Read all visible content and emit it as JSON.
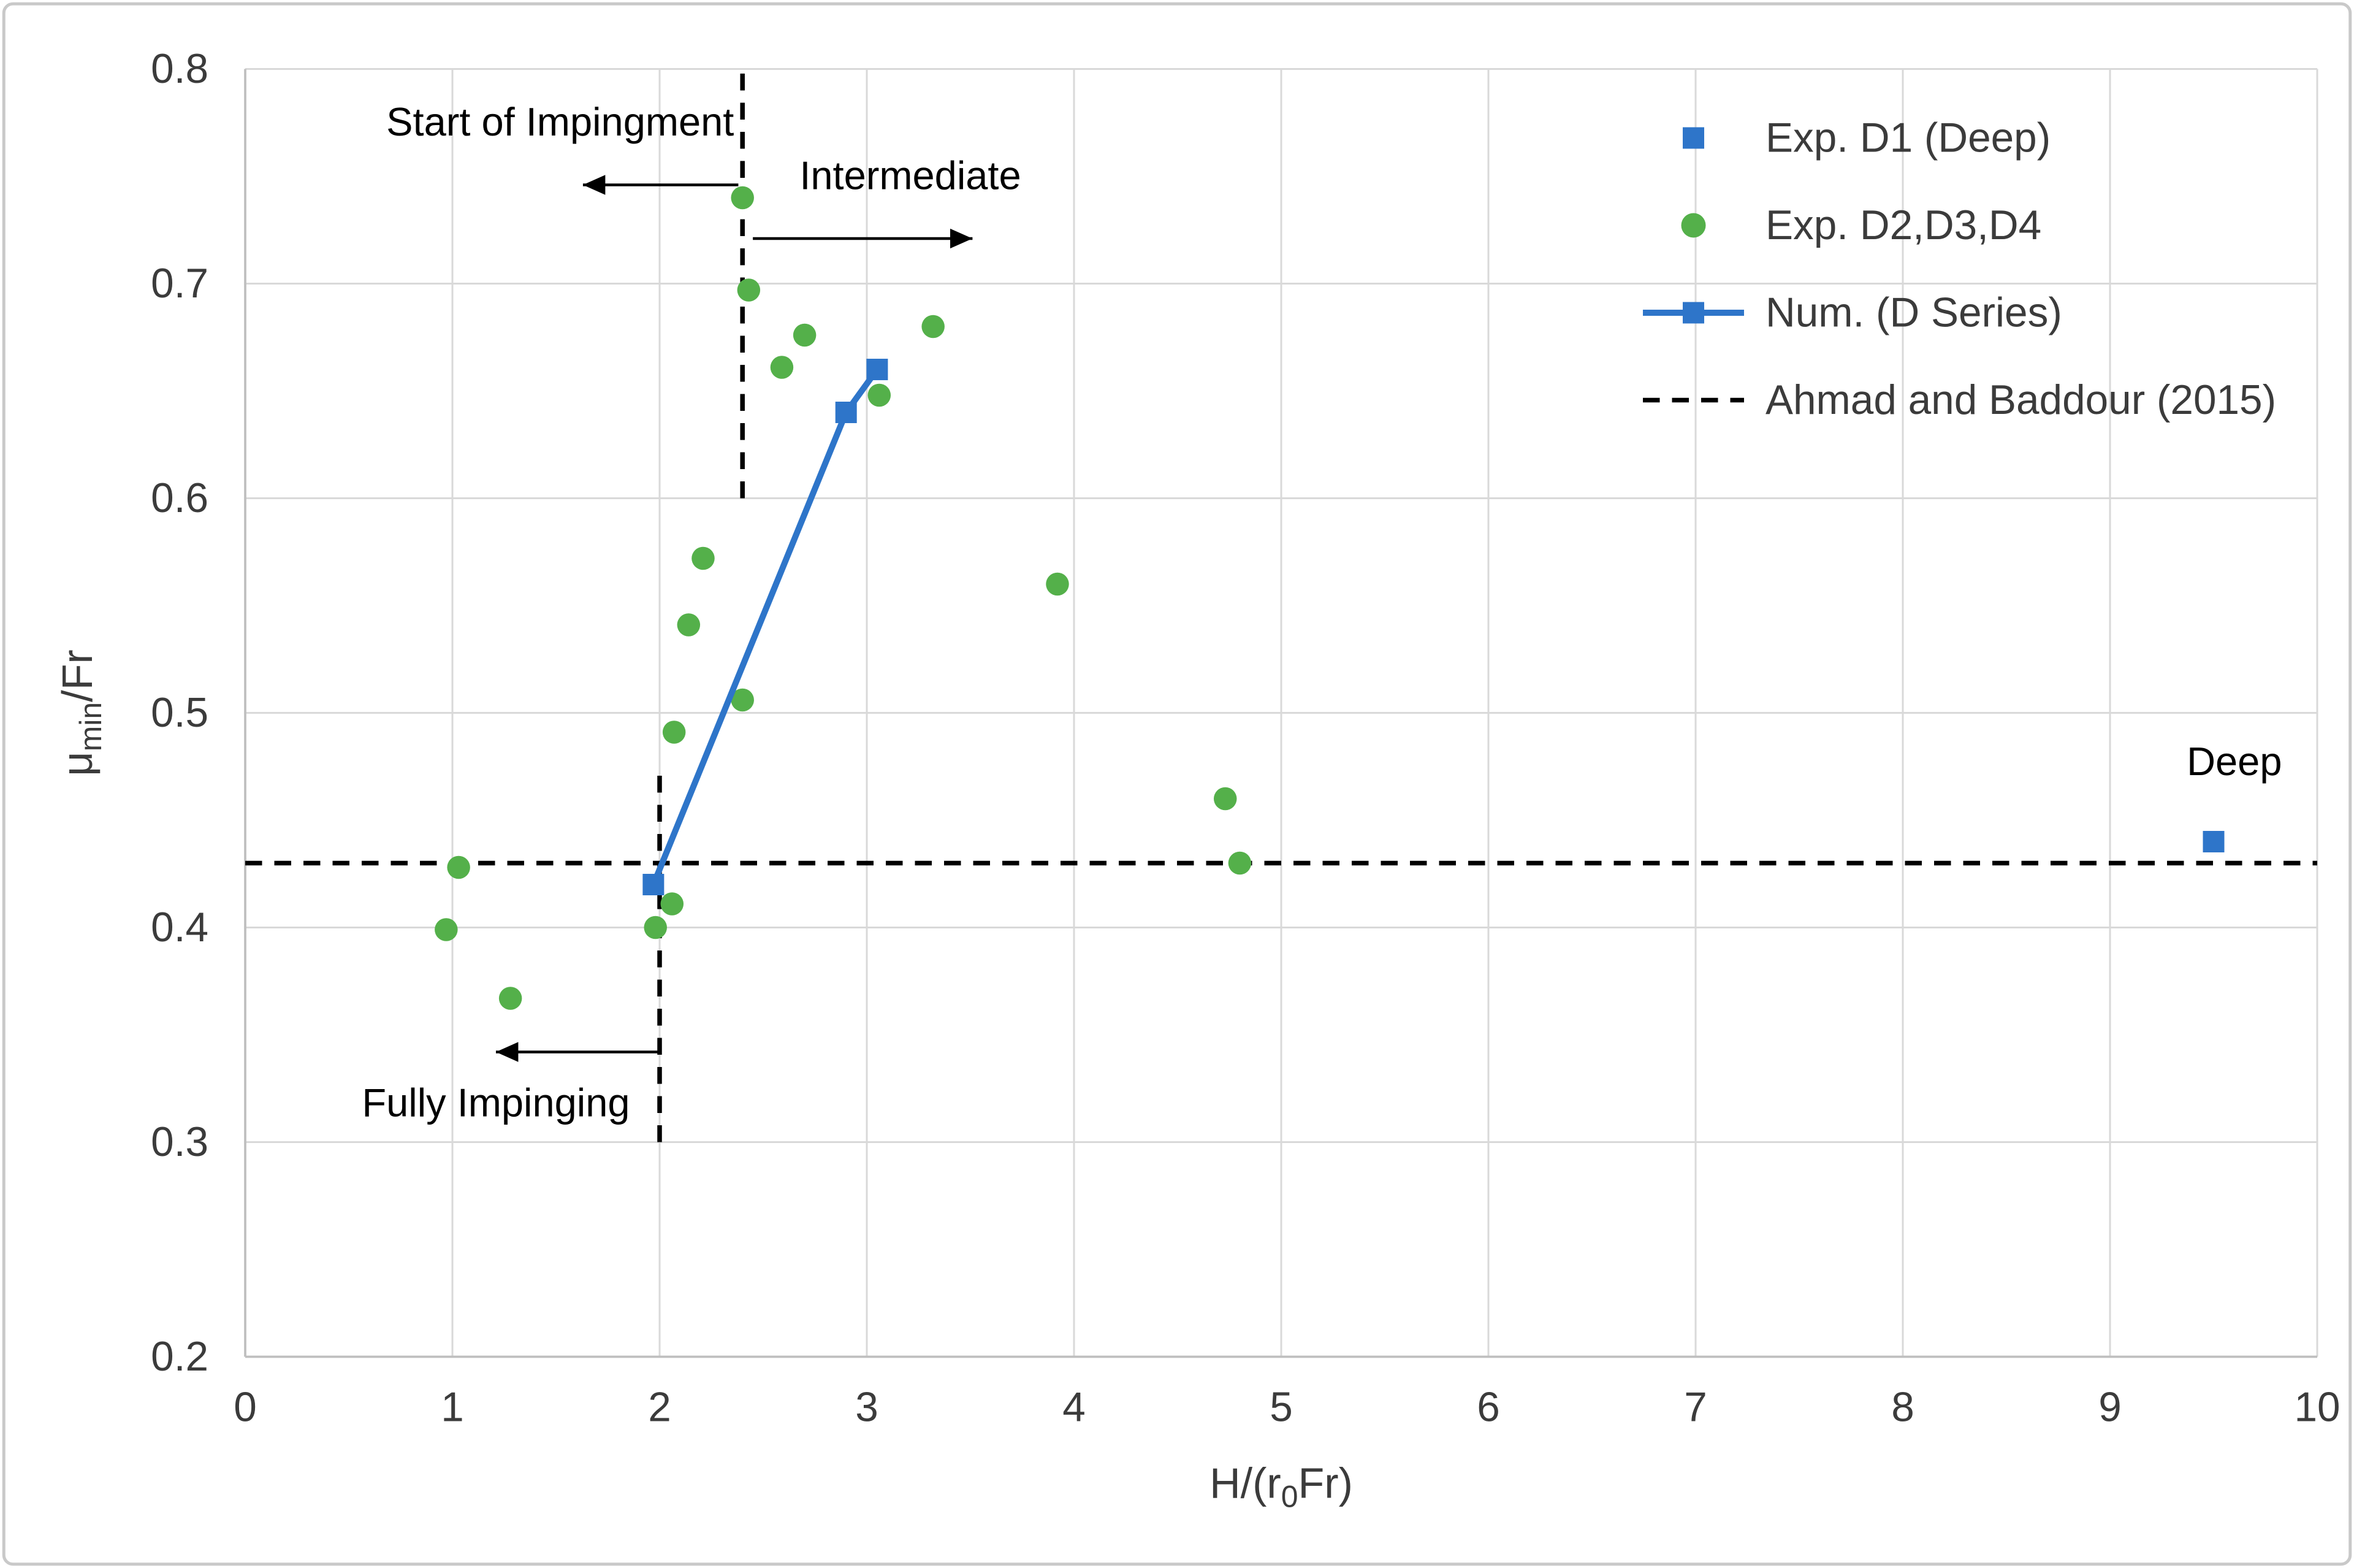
{
  "figure": {
    "background": "#ffffff",
    "border_color": "#c9c9c9"
  },
  "chart_data": {
    "type": "scatter",
    "title": "",
    "xlabel_parts": {
      "pre": "H/(r",
      "sub": "0",
      "post": "Fr)"
    },
    "ylabel_parts": {
      "pre": "μ",
      "sub": "min",
      "post": "/Fr"
    },
    "xlim": [
      0,
      10
    ],
    "ylim": [
      0.2,
      0.8
    ],
    "x_ticks": [
      0,
      1,
      2,
      3,
      4,
      5,
      6,
      7,
      8,
      9,
      10
    ],
    "y_ticks": [
      0.2,
      0.3,
      0.4,
      0.5,
      0.6,
      0.7,
      0.8
    ],
    "grid": true,
    "grid_color": "#d9d9d9",
    "axis_color": "#bfbfbf",
    "text_color": "#3b3b3b",
    "series": [
      {
        "name": "Exp. D1 (Deep)",
        "type": "scatter",
        "marker": "square",
        "color": "#2e75c9",
        "points": [
          [
            9.5,
            0.44
          ]
        ]
      },
      {
        "name": "Exp. D2,D3,D4",
        "type": "scatter",
        "marker": "circle",
        "color": "#54b04a",
        "points": [
          [
            0.97,
            0.399
          ],
          [
            1.03,
            0.428
          ],
          [
            1.28,
            0.367
          ],
          [
            1.98,
            0.4
          ],
          [
            2.06,
            0.411
          ],
          [
            2.07,
            0.491
          ],
          [
            2.14,
            0.541
          ],
          [
            2.21,
            0.572
          ],
          [
            2.4,
            0.74
          ],
          [
            2.43,
            0.697
          ],
          [
            2.4,
            0.506
          ],
          [
            2.59,
            0.661
          ],
          [
            2.7,
            0.676
          ],
          [
            3.06,
            0.648
          ],
          [
            3.32,
            0.68
          ],
          [
            3.92,
            0.56
          ],
          [
            4.73,
            0.46
          ],
          [
            4.8,
            0.43
          ]
        ]
      },
      {
        "name": "Num. (D Series)",
        "type": "line",
        "marker": "square",
        "color": "#2e75c9",
        "points": [
          [
            1.97,
            0.42
          ],
          [
            2.9,
            0.64
          ],
          [
            3.05,
            0.66
          ]
        ]
      },
      {
        "name": "Ahmad and Baddour (2015)",
        "type": "dashed-reference",
        "color": "#000000",
        "points": []
      }
    ],
    "reference_lines": [
      {
        "orientation": "horizontal",
        "y": 0.43,
        "x1": 0,
        "x2": 10
      },
      {
        "orientation": "vertical",
        "x": 2.4,
        "y1": 0.6,
        "y2": 0.8
      },
      {
        "orientation": "vertical",
        "x": 2.0,
        "y1": 0.3,
        "y2": 0.475
      }
    ],
    "annotations": [
      {
        "text": "Start of Impingment",
        "x": 1.52,
        "y": 0.769,
        "arrow": {
          "x1": 2.38,
          "y1": 0.746,
          "x2": 1.63,
          "y2": 0.746
        }
      },
      {
        "text": "Intermediate",
        "x": 3.21,
        "y": 0.744,
        "arrow": {
          "x1": 2.45,
          "y1": 0.721,
          "x2": 3.51,
          "y2": 0.721
        }
      },
      {
        "text": "Fully Impinging",
        "x": 1.21,
        "y": 0.312,
        "arrow": {
          "x1": 2.0,
          "y1": 0.342,
          "x2": 1.21,
          "y2": 0.342
        }
      },
      {
        "text": "Deep",
        "x": 9.6,
        "y": 0.471,
        "arrow": null
      }
    ],
    "legend": {
      "position": "top-right",
      "entries": [
        {
          "label": "Exp. D1 (Deep)",
          "swatch": "square",
          "color": "#2e75c9"
        },
        {
          "label": "Exp. D2,D3,D4",
          "swatch": "circle",
          "color": "#54b04a"
        },
        {
          "label": "Num. (D Series)",
          "swatch": "line-square",
          "color": "#2e75c9"
        },
        {
          "label": "Ahmad and Baddour (2015)",
          "swatch": "dashed-line",
          "color": "#000000"
        }
      ]
    }
  }
}
